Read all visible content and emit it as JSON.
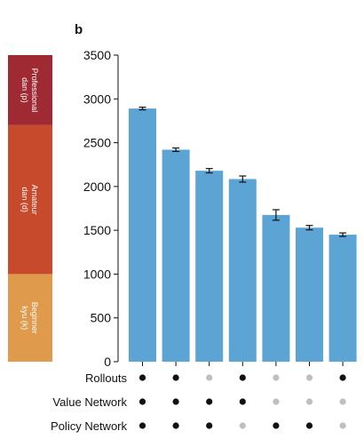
{
  "chart_data": {
    "type": "bar",
    "panel_label": "b",
    "ylim": [
      0,
      3500
    ],
    "y_ticks": [
      0,
      500,
      1000,
      1500,
      2000,
      2500,
      3000,
      3500
    ],
    "values": [
      2890,
      2420,
      2180,
      2085,
      1675,
      1530,
      1450
    ],
    "errors": [
      15,
      20,
      25,
      35,
      60,
      25,
      20
    ],
    "bar_color": "#5ba4d4",
    "rank_bands": [
      {
        "label_lines": [
          "Professional",
          "dan (p)"
        ],
        "from": 2700,
        "to": 3500,
        "color": "#a02a34"
      },
      {
        "label_lines": [
          "Amateur",
          "dan (d)"
        ],
        "from": 1000,
        "to": 2700,
        "color": "#c84a2c"
      },
      {
        "label_lines": [
          "Beginner",
          "kyu (k)"
        ],
        "from": 0,
        "to": 1000,
        "color": "#e09a4c"
      }
    ],
    "config_rows": [
      {
        "label": "Rollouts",
        "flags": [
          true,
          true,
          false,
          true,
          false,
          false,
          true
        ]
      },
      {
        "label": "Value Network",
        "flags": [
          true,
          true,
          true,
          true,
          false,
          false,
          false
        ]
      },
      {
        "label": "Policy Network",
        "flags": [
          true,
          true,
          true,
          false,
          true,
          true,
          false
        ]
      }
    ],
    "on_color": "#111111",
    "off_color": "#bfbfbf"
  }
}
